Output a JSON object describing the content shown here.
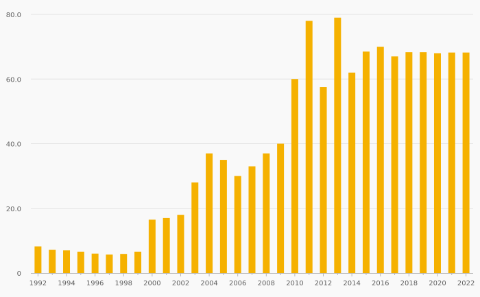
{
  "chart_data": {
    "type": "bar",
    "title": "",
    "xlabel": "",
    "ylabel": "",
    "categories": [
      "1992",
      "1993",
      "1994",
      "1995",
      "1996",
      "1997",
      "1998",
      "1999",
      "2000",
      "2001",
      "2002",
      "2003",
      "2004",
      "2005",
      "2006",
      "2007",
      "2008",
      "2009",
      "2010",
      "2011",
      "2012",
      "2013",
      "2014",
      "2015",
      "2016",
      "2017",
      "2018",
      "2019",
      "2020",
      "2021",
      "2022"
    ],
    "values": [
      8.2,
      7.2,
      7.0,
      6.6,
      6.0,
      5.7,
      5.9,
      6.6,
      16.5,
      17.0,
      18.0,
      28.0,
      37.0,
      35.0,
      30.0,
      33.0,
      37.0,
      40.0,
      60.0,
      78.0,
      57.5,
      79.0,
      62.0,
      68.5,
      70.0,
      67.0,
      68.3,
      68.3,
      68.0,
      68.2,
      68.2
    ],
    "x_tick_labels": [
      "1992",
      "1994",
      "1996",
      "1998",
      "2000",
      "2002",
      "2004",
      "2006",
      "2008",
      "2010",
      "2012",
      "2014",
      "2016",
      "2018",
      "2020",
      "2022"
    ],
    "y_tick_labels": [
      "0",
      "20.0",
      "40.0",
      "60.0",
      "80.0"
    ],
    "ylim": [
      0,
      80
    ],
    "bar_color": "#f5b100",
    "grid": "horizontal",
    "legend": "none"
  }
}
